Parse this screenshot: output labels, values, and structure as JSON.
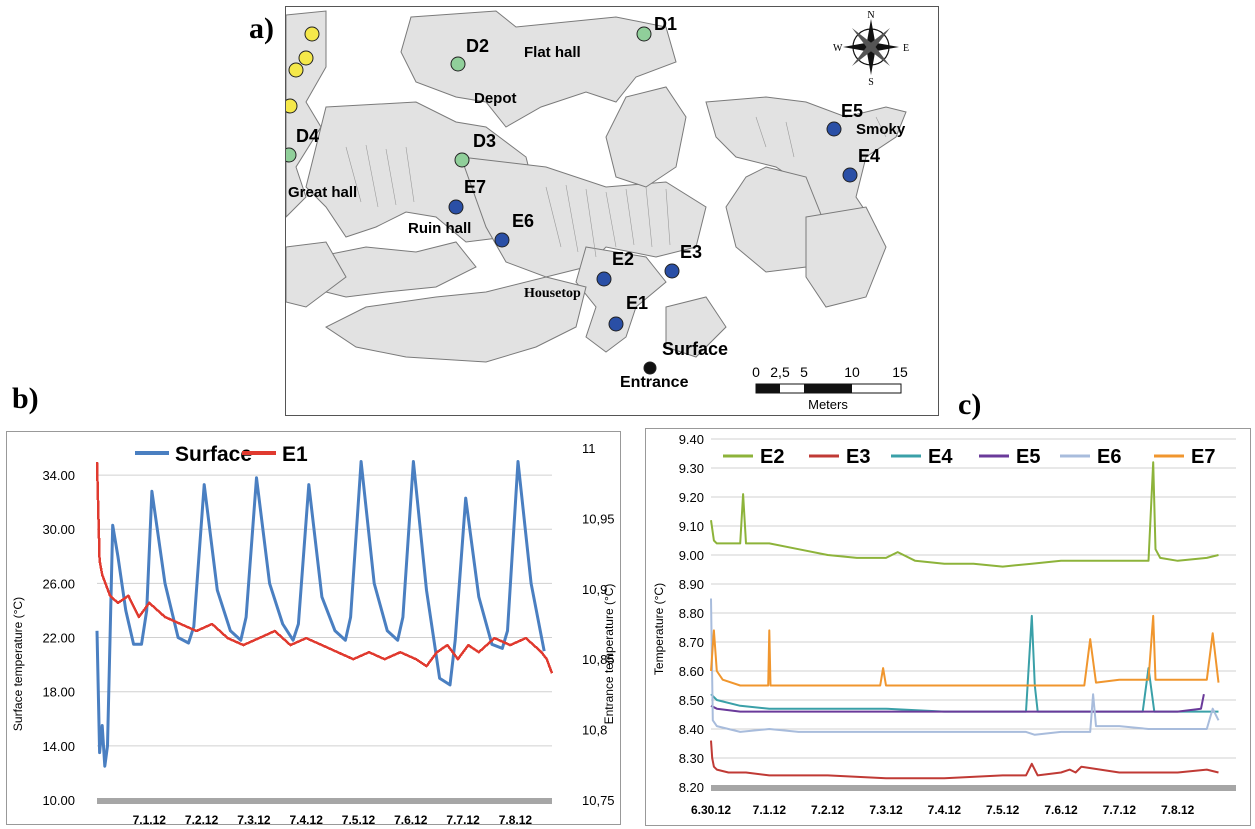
{
  "panels": {
    "a": "a)",
    "b": "b)",
    "c": "c)"
  },
  "map": {
    "points": [
      {
        "id": "D1",
        "label": "D1",
        "type": "green"
      },
      {
        "id": "D2",
        "label": "D2",
        "type": "green"
      },
      {
        "id": "D3",
        "label": "D3",
        "type": "green"
      },
      {
        "id": "D4",
        "label": "D4",
        "type": "green"
      },
      {
        "id": "E1",
        "label": "E1",
        "type": "blue"
      },
      {
        "id": "E2",
        "label": "E2",
        "type": "blue"
      },
      {
        "id": "E3",
        "label": "E3",
        "type": "blue"
      },
      {
        "id": "E4",
        "label": "E4",
        "type": "blue"
      },
      {
        "id": "E5",
        "label": "E5",
        "type": "blue"
      },
      {
        "id": "E6",
        "label": "E6",
        "type": "blue"
      },
      {
        "id": "E7",
        "label": "E7",
        "type": "blue"
      },
      {
        "id": "Y1",
        "label": "",
        "type": "yellow"
      },
      {
        "id": "Y2",
        "label": "",
        "type": "yellow"
      },
      {
        "id": "Y3",
        "label": "",
        "type": "yellow"
      },
      {
        "id": "Y4",
        "label": "",
        "type": "yellow"
      },
      {
        "id": "ENT",
        "label": "",
        "type": "black"
      }
    ],
    "areas": {
      "flat_hall": "Flat hall",
      "depot": "Depot",
      "great_hall": "Great hall",
      "ruin_hall": "Ruin hall",
      "housetop": "Housetop",
      "smoky": "Smoky",
      "surface": "Surface",
      "entrance": "Entrance"
    },
    "compass": {
      "n": "N",
      "s": "S",
      "e": "E",
      "w": "W"
    },
    "scale": {
      "ticks": [
        "0",
        "2,5",
        "5",
        "10",
        "15"
      ],
      "unit": "Meters"
    },
    "colors": {
      "green": "#90cf9a",
      "blue": "#2a4fa6",
      "yellow": "#f5e84a",
      "black": "#111111",
      "rock": "#e2e2e2"
    }
  },
  "chart_data": [
    {
      "panel": "b",
      "type": "line",
      "xlabel": "",
      "ylabel_left": "Surface temperature (°C)",
      "ylabel_right": "Entrance temperature (°C)",
      "x_tick_labels": [
        "7.1.12",
        "7.2.12",
        "7.3.12",
        "7.4.12",
        "7.5.12",
        "7.6.12",
        "7.7.12",
        "7.8.12"
      ],
      "x_range": [
        0,
        8.7
      ],
      "y_left_ticks": [
        "10.00",
        "14.00",
        "18.00",
        "22.00",
        "26.00",
        "30.00",
        "34.00"
      ],
      "y_left_range": [
        10,
        36
      ],
      "y_right_ticks": [
        "10,75",
        "10,8",
        "10,85",
        "10,9",
        "10,95",
        "11"
      ],
      "y_right_range": [
        10.75,
        11.0
      ],
      "grid": true,
      "legend_position": "top",
      "series": [
        {
          "name": "Surface",
          "axis": "left",
          "color": "#4a7fc1",
          "x": [
            0,
            0.05,
            0.1,
            0.15,
            0.2,
            0.3,
            0.4,
            0.55,
            0.7,
            0.85,
            0.95,
            1.05,
            1.3,
            1.55,
            1.75,
            1.85,
            2.05,
            2.3,
            2.55,
            2.75,
            2.85,
            3.05,
            3.3,
            3.55,
            3.75,
            3.85,
            4.05,
            4.3,
            4.55,
            4.75,
            4.85,
            5.05,
            5.3,
            5.55,
            5.75,
            5.85,
            6.05,
            6.3,
            6.55,
            6.75,
            6.85,
            7.05,
            7.3,
            7.55,
            7.75,
            7.85,
            8.05,
            8.3,
            8.55
          ],
          "y": [
            22.5,
            13.5,
            15.5,
            12.5,
            14,
            30.3,
            28,
            24,
            21.5,
            21.5,
            24,
            32.8,
            26,
            22,
            21.6,
            22.8,
            33.3,
            25.5,
            22.5,
            21.8,
            23.5,
            33.8,
            26,
            23,
            21.8,
            23,
            33.3,
            25,
            22.5,
            21.8,
            23.5,
            35,
            26,
            22.5,
            21.8,
            23.5,
            35,
            25.5,
            19,
            18.5,
            21.8,
            32.3,
            25,
            21.5,
            21.2,
            22.5,
            35,
            26,
            21
          ]
        },
        {
          "name": "E1",
          "axis": "right",
          "color": "#e03a2f",
          "x": [
            0,
            0.05,
            0.1,
            0.25,
            0.4,
            0.6,
            0.8,
            1.0,
            1.3,
            1.6,
            1.9,
            2.2,
            2.5,
            2.8,
            3.1,
            3.4,
            3.7,
            4.0,
            4.3,
            4.6,
            4.9,
            5.2,
            5.5,
            5.8,
            6.1,
            6.3,
            6.5,
            6.7,
            6.9,
            7.1,
            7.3,
            7.6,
            7.9,
            8.2,
            8.5,
            8.6,
            8.7
          ],
          "y": [
            10.99,
            10.92,
            10.91,
            10.895,
            10.89,
            10.895,
            10.88,
            10.89,
            10.88,
            10.875,
            10.87,
            10.875,
            10.865,
            10.86,
            10.865,
            10.87,
            10.86,
            10.865,
            10.86,
            10.855,
            10.85,
            10.855,
            10.85,
            10.855,
            10.85,
            10.845,
            10.855,
            10.86,
            10.85,
            10.86,
            10.855,
            10.865,
            10.86,
            10.865,
            10.855,
            10.85,
            10.84
          ]
        }
      ]
    },
    {
      "panel": "c",
      "type": "line",
      "xlabel": "",
      "ylabel": "Temperature (°C)",
      "x_tick_labels": [
        "6.30.12",
        "7.1.12",
        "7.2.12",
        "7.3.12",
        "7.4.12",
        "7.5.12",
        "7.6.12",
        "7.7.12",
        "7.8.12"
      ],
      "x_range": [
        0,
        9.0
      ],
      "y_ticks": [
        "8.20",
        "8.30",
        "8.40",
        "8.50",
        "8.60",
        "8.70",
        "8.80",
        "8.90",
        "9.00",
        "9.10",
        "9.20",
        "9.30",
        "9.40"
      ],
      "ylim": [
        8.2,
        9.4
      ],
      "grid": true,
      "legend_position": "top",
      "series": [
        {
          "name": "E2",
          "color": "#8db33a",
          "x": [
            0,
            0.05,
            0.1,
            0.5,
            0.55,
            0.6,
            1.0,
            1.5,
            2.0,
            2.5,
            3.0,
            3.2,
            3.5,
            4.0,
            4.5,
            5.0,
            5.5,
            6.0,
            6.5,
            7.0,
            7.5,
            7.58,
            7.62,
            7.7,
            8.0,
            8.5,
            8.7
          ],
          "y": [
            9.12,
            9.05,
            9.04,
            9.04,
            9.21,
            9.04,
            9.04,
            9.02,
            9.0,
            8.99,
            8.99,
            9.01,
            8.98,
            8.97,
            8.97,
            8.96,
            8.97,
            8.98,
            8.98,
            8.98,
            8.98,
            9.32,
            9.02,
            8.99,
            8.98,
            8.99,
            9.0
          ]
        },
        {
          "name": "E3",
          "color": "#c03a35",
          "x": [
            0,
            0.02,
            0.05,
            0.1,
            0.3,
            0.6,
            1.0,
            2.0,
            3.0,
            4.0,
            5.0,
            5.4,
            5.5,
            5.6,
            6.0,
            6.15,
            6.25,
            6.35,
            7.0,
            7.5,
            8.0,
            8.5,
            8.7
          ],
          "y": [
            8.36,
            8.3,
            8.27,
            8.26,
            8.25,
            8.25,
            8.24,
            8.24,
            8.23,
            8.23,
            8.24,
            8.24,
            8.28,
            8.24,
            8.25,
            8.26,
            8.25,
            8.27,
            8.25,
            8.25,
            8.25,
            8.26,
            8.25
          ]
        },
        {
          "name": "E4",
          "color": "#3aa0a8",
          "x": [
            0,
            0.1,
            0.5,
            1.0,
            2.0,
            3.0,
            4.0,
            5.0,
            5.4,
            5.5,
            5.55,
            5.6,
            6.0,
            7.0,
            7.4,
            7.5,
            7.6,
            8.0,
            8.7
          ],
          "y": [
            8.52,
            8.5,
            8.48,
            8.47,
            8.47,
            8.47,
            8.46,
            8.46,
            8.46,
            8.79,
            8.55,
            8.46,
            8.46,
            8.46,
            8.46,
            8.61,
            8.46,
            8.46,
            8.46
          ]
        },
        {
          "name": "E5",
          "color": "#6a3a9a",
          "x": [
            0,
            0.1,
            0.5,
            1.0,
            2.0,
            3.0,
            4.0,
            5.0,
            6.0,
            7.0,
            8.0,
            8.4,
            8.45
          ],
          "y": [
            8.48,
            8.47,
            8.46,
            8.46,
            8.46,
            8.46,
            8.46,
            8.46,
            8.46,
            8.46,
            8.46,
            8.47,
            8.52
          ]
        },
        {
          "name": "E6",
          "color": "#a8bcdc",
          "x": [
            0,
            0.03,
            0.1,
            0.3,
            0.5,
            1.0,
            1.5,
            2.0,
            3.0,
            4.0,
            5.0,
            5.4,
            5.55,
            6.0,
            6.5,
            6.55,
            6.6,
            7.0,
            7.5,
            8.0,
            8.5,
            8.6,
            8.7
          ],
          "y": [
            8.85,
            8.43,
            8.41,
            8.4,
            8.39,
            8.4,
            8.39,
            8.39,
            8.39,
            8.39,
            8.39,
            8.39,
            8.38,
            8.39,
            8.39,
            8.52,
            8.41,
            8.41,
            8.4,
            8.4,
            8.4,
            8.47,
            8.43
          ]
        },
        {
          "name": "E7",
          "color": "#f0962e",
          "x": [
            0,
            0.05,
            0.1,
            0.2,
            0.5,
            0.98,
            1.0,
            1.02,
            1.5,
            2.0,
            2.9,
            2.95,
            3.0,
            4.0,
            4.5,
            5.0,
            5.5,
            6.0,
            6.4,
            6.5,
            6.6,
            7.0,
            7.5,
            7.58,
            7.62,
            8.0,
            8.5,
            8.6,
            8.7
          ],
          "y": [
            8.6,
            8.74,
            8.6,
            8.57,
            8.55,
            8.55,
            8.74,
            8.55,
            8.55,
            8.55,
            8.55,
            8.61,
            8.55,
            8.55,
            8.55,
            8.55,
            8.55,
            8.55,
            8.55,
            8.71,
            8.56,
            8.57,
            8.57,
            8.79,
            8.57,
            8.57,
            8.57,
            8.73,
            8.56
          ]
        }
      ]
    }
  ]
}
